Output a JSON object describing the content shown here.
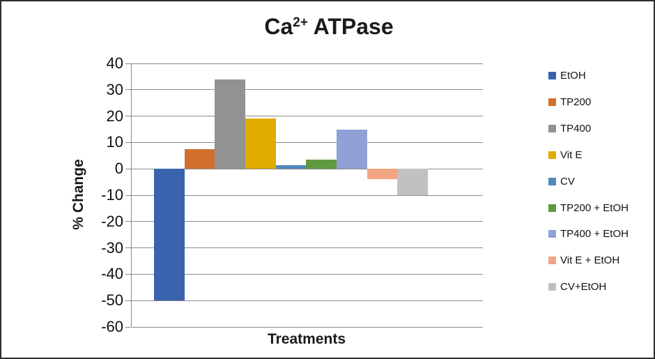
{
  "title": {
    "base": "Ca",
    "sup": "2+",
    "rest": " ATPase"
  },
  "chart_data": {
    "type": "bar",
    "title": "Ca2+ ATPase",
    "xlabel": "Treatments",
    "ylabel": "% Change",
    "ylim": [
      -60,
      40
    ],
    "yticks": [
      40,
      30,
      20,
      10,
      0,
      -10,
      -20,
      -30,
      -40,
      -50,
      -60
    ],
    "grid": true,
    "legend_position": "right",
    "categories": [
      "EtOH",
      "TP200",
      "TP400",
      "Vit E",
      "CV",
      "TP200 + EtOH",
      "TP400 + EtOH",
      "Vit E + EtOH",
      "CV+EtOH"
    ],
    "series": [
      {
        "name": "EtOH",
        "value": -50,
        "color": "#3a63ad"
      },
      {
        "name": "TP200",
        "value": 7.5,
        "color": "#d06f2b"
      },
      {
        "name": "TP400",
        "value": 34,
        "color": "#929292"
      },
      {
        "name": "Vit E",
        "value": 19,
        "color": "#e1ab00"
      },
      {
        "name": "CV",
        "value": 1.5,
        "color": "#5189bf"
      },
      {
        "name": "TP200 + EtOH",
        "value": 3.5,
        "color": "#609a40"
      },
      {
        "name": "TP400 + EtOH",
        "value": 15,
        "color": "#90a1d5"
      },
      {
        "name": "Vit E + EtOH",
        "value": -4,
        "color": "#f1a583"
      },
      {
        "name": "CV+EtOH",
        "value": -10,
        "color": "#c1c1c1"
      }
    ],
    "colors": {
      "gridline": "#8a8a8a",
      "axis_line": "#8a8a8a",
      "text": "#000000",
      "background": "#ffffff"
    }
  }
}
